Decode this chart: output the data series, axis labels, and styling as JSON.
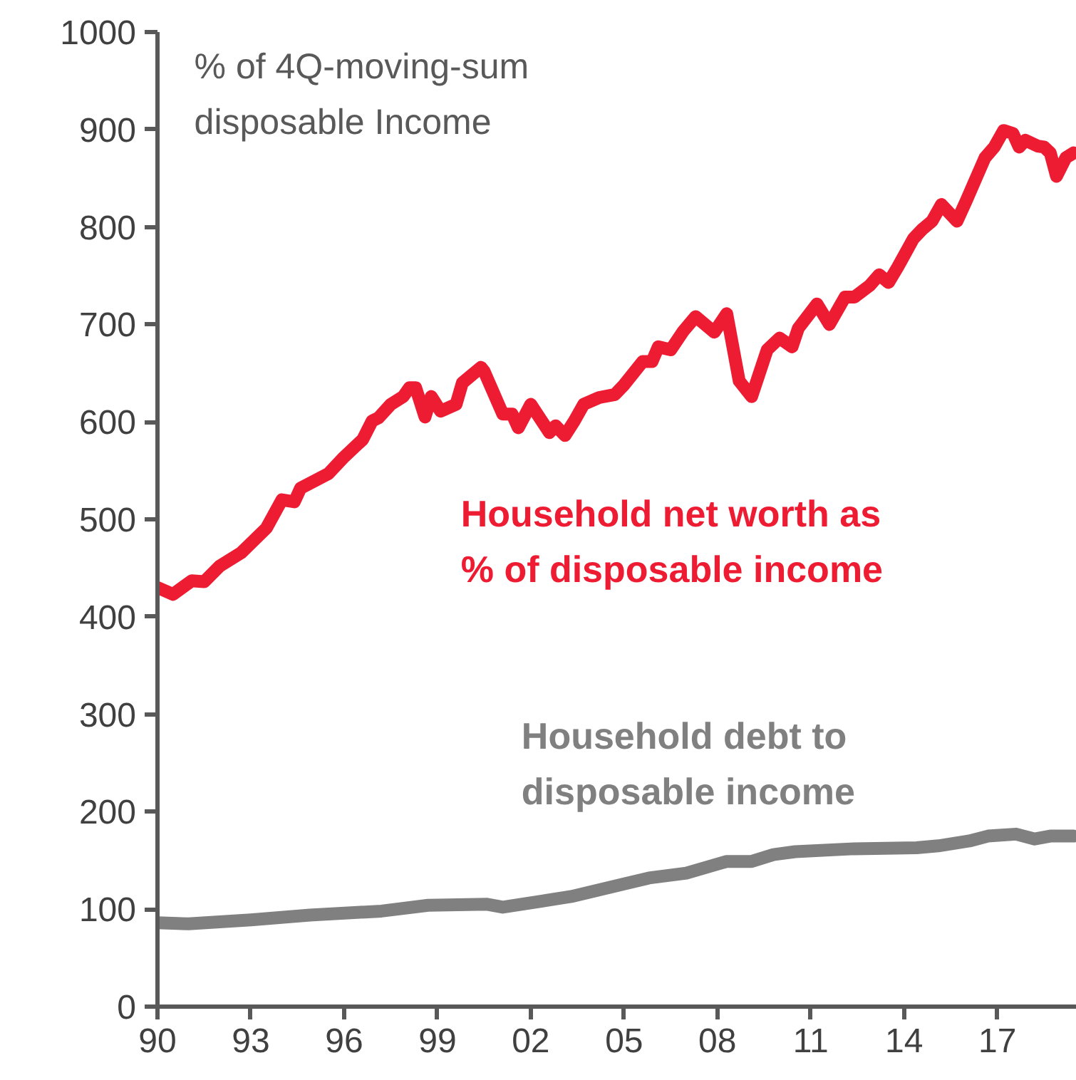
{
  "chart_data": {
    "type": "line",
    "ylabel": "% of 4Q-moving-sum\ndisposable Income",
    "xlim": [
      1990,
      2019.55
    ],
    "xticks": [
      {
        "value": 1990,
        "label": "90"
      },
      {
        "value": 1993,
        "label": "93"
      },
      {
        "value": 1996,
        "label": "96"
      },
      {
        "value": 1999,
        "label": "99"
      },
      {
        "value": 2002,
        "label": "02"
      },
      {
        "value": 2005,
        "label": "05"
      },
      {
        "value": 2008,
        "label": "08"
      },
      {
        "value": 2011,
        "label": "11"
      },
      {
        "value": 2014,
        "label": "14"
      },
      {
        "value": 2017,
        "label": "17"
      }
    ],
    "ylim": [
      0,
      1000
    ],
    "yticks": [
      0,
      100,
      200,
      300,
      400,
      500,
      600,
      700,
      800,
      900,
      1000
    ],
    "grid": false,
    "marker": "none",
    "line_style": "solid",
    "series": [
      {
        "name": "Household net worth as\n% of disposable income",
        "color": "#ee1c33",
        "x": [
          1990.0,
          1990.5,
          1991.1,
          1991.5,
          1992.0,
          1992.7,
          1993.5,
          1994.0,
          1994.4,
          1994.6,
          1995.5,
          1996.0,
          1996.6,
          1996.9,
          1997.1,
          1997.5,
          1997.9,
          1998.1,
          1998.3,
          1998.6,
          1998.8,
          1999.1,
          1999.6,
          1999.8,
          2000.4,
          2000.5,
          2001.1,
          2001.4,
          2001.6,
          2002.0,
          2002.6,
          2002.8,
          2003.1,
          2003.4,
          2003.7,
          2004.2,
          2004.7,
          2005.0,
          2005.6,
          2005.9,
          2006.1,
          2006.5,
          2006.9,
          2007.3,
          2007.9,
          2008.3,
          2008.7,
          2009.1,
          2009.6,
          2010.0,
          2010.4,
          2010.6,
          2011.2,
          2011.6,
          2012.1,
          2012.4,
          2012.9,
          2013.2,
          2013.5,
          2013.8,
          2014.3,
          2014.6,
          2014.9,
          2015.2,
          2015.7,
          2016.0,
          2016.6,
          2016.9,
          2017.2,
          2017.5,
          2017.7,
          2017.9,
          2018.3,
          2018.5,
          2018.7,
          2018.9,
          2019.2,
          2019.45
        ],
        "values": [
          430,
          423,
          437,
          436,
          452,
          466,
          491,
          520,
          518,
          532,
          547,
          564,
          582,
          601,
          604,
          618,
          626,
          635,
          635,
          605,
          626,
          611,
          618,
          640,
          656,
          652,
          608,
          608,
          594,
          618,
          589,
          596,
          586,
          601,
          618,
          625,
          628,
          638,
          662,
          662,
          677,
          674,
          693,
          708,
          692,
          711,
          642,
          626,
          674,
          686,
          677,
          696,
          721,
          700,
          728,
          728,
          740,
          751,
          743,
          759,
          788,
          798,
          806,
          823,
          806,
          827,
          871,
          882,
          899,
          896,
          882,
          889,
          883,
          882,
          876,
          852,
          871,
          876
        ]
      },
      {
        "name": "Household debt to\ndisposable income",
        "color": "#808080",
        "x": [
          1990.0,
          1991.0,
          1993.0,
          1994.9,
          1997.2,
          1998.7,
          2000.6,
          2001.1,
          2003.3,
          2005.0,
          2005.8,
          2007.0,
          2008.3,
          2009.1,
          2009.8,
          2010.5,
          2012.4,
          2014.4,
          2015.1,
          2016.1,
          2016.7,
          2017.6,
          2018.2,
          2018.7,
          2019.45
        ],
        "values": [
          86,
          85,
          89,
          94,
          98,
          104,
          105,
          102,
          113,
          126,
          132,
          137,
          149,
          149,
          156,
          159,
          162,
          163,
          165,
          170,
          175,
          177,
          172,
          175,
          175
        ]
      }
    ]
  }
}
